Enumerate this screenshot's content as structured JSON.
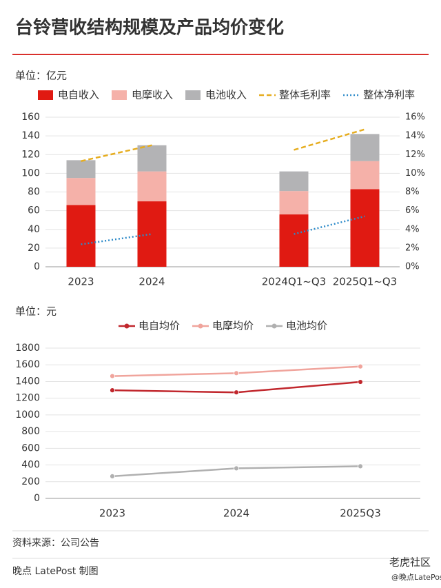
{
  "header": {
    "title": "台铃营收结构规模及产品均价变化"
  },
  "chart_data": [
    {
      "type": "bar",
      "stacked": true,
      "y_label": "单位：亿元",
      "categories": [
        "2023",
        "2024",
        null,
        "2024Q1~Q3",
        "2025Q1~Q3"
      ],
      "series": [
        {
          "name": "电自收入",
          "color": "#e01a12",
          "values": [
            66,
            70,
            null,
            56,
            83
          ]
        },
        {
          "name": "电摩收入",
          "color": "#f5b1a9",
          "values": [
            29,
            32,
            null,
            25,
            30
          ]
        },
        {
          "name": "电池收入",
          "color": "#b3b3b5",
          "values": [
            19,
            28,
            null,
            21,
            29
          ]
        },
        {
          "name": "整体毛利率",
          "type": "line",
          "axis": "y2",
          "dash": "dashed",
          "color": "#e6ad1f",
          "values": [
            11.3,
            13.0,
            null,
            12.5,
            14.7
          ]
        },
        {
          "name": "整体净利率",
          "type": "line",
          "axis": "y2",
          "dash": "dotted",
          "color": "#2e8bc9",
          "values": [
            2.4,
            3.5,
            null,
            3.5,
            5.4
          ]
        }
      ],
      "ylim": [
        0,
        160
      ],
      "yticks": [
        0,
        20,
        40,
        60,
        80,
        100,
        120,
        140,
        160
      ],
      "y2lim": [
        0,
        16
      ],
      "y2ticks": [
        {
          "value": 0,
          "label": "0%"
        },
        {
          "value": 2,
          "label": "2%"
        },
        {
          "value": 4,
          "label": "4%"
        },
        {
          "value": 6,
          "label": "6%"
        },
        {
          "value": 8,
          "label": "8%"
        },
        {
          "value": 10,
          "label": "10%"
        },
        {
          "value": 12,
          "label": "12%"
        },
        {
          "value": 14,
          "label": "14%"
        },
        {
          "value": 16,
          "label": "16%"
        }
      ],
      "grid": true
    },
    {
      "type": "line",
      "markers": true,
      "y_label": "单位：元",
      "categories": [
        "2023",
        "2024",
        "2025Q3"
      ],
      "series": [
        {
          "name": "电自均价",
          "color": "#c1272d",
          "values": [
            1295,
            1270,
            1395
          ]
        },
        {
          "name": "电摩均价",
          "color": "#f0a49c",
          "values": [
            1465,
            1500,
            1580
          ]
        },
        {
          "name": "电池均价",
          "color": "#b0b0b0",
          "values": [
            265,
            360,
            385
          ]
        }
      ],
      "ylim": [
        0,
        1800
      ],
      "yticks": [
        0,
        200,
        400,
        600,
        800,
        1000,
        1200,
        1400,
        1600,
        1800
      ],
      "grid": true
    }
  ],
  "footer": {
    "source": "资料来源：公司公告",
    "credit": "晚点 LatePost 制图",
    "watermark": "老虎社区",
    "handle": "@晚点LatePost"
  }
}
